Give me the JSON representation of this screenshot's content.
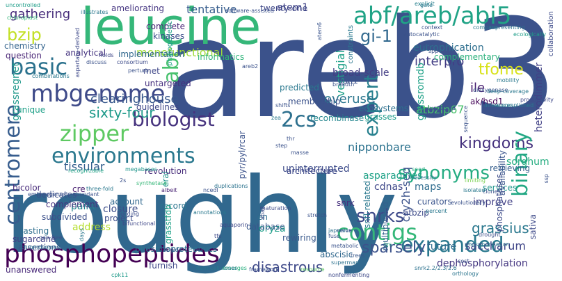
{
  "words": [
    {
      "text": "roughly",
      "color": "#31688e"
    },
    {
      "text": "areb3",
      "color": "#3b528b"
    },
    {
      "text": "leucine",
      "color": "#35b779"
    },
    {
      "text": "abf/areb/abi5",
      "color": "#20a386"
    },
    {
      "text": "phosphopeptides",
      "color": "#440154"
    },
    {
      "text": "mbgenome",
      "color": "#3e4a89"
    },
    {
      "text": "environments",
      "color": "#2a788e"
    },
    {
      "text": "biologist",
      "color": "#46337e"
    },
    {
      "text": "basic",
      "color": "#2c728e"
    },
    {
      "text": "zipper",
      "color": "#5ec962"
    },
    {
      "text": "contigs",
      "color": "#35b779"
    },
    {
      "text": "expanded",
      "color": "#2a788e"
    },
    {
      "text": "kingdoms",
      "color": "#46327e"
    },
    {
      "text": "centromere",
      "color": "#365c8d"
    },
    {
      "text": "binary",
      "color": "#22a884"
    },
    {
      "text": "abi",
      "color": "#48c16e"
    },
    {
      "text": "expert",
      "color": "#27808e"
    },
    {
      "text": "gi-1",
      "color": "#31688e"
    },
    {
      "text": "2cs",
      "color": "#2d708e"
    },
    {
      "text": "sixty-four",
      "color": "#1f9a8a"
    },
    {
      "text": "synonyms",
      "color": "#25ac82"
    },
    {
      "text": "snrks",
      "color": "#3e4a89"
    },
    {
      "text": "sparsely",
      "color": "#3b528b"
    },
    {
      "text": "bzip",
      "color": "#c2df23"
    },
    {
      "text": "tfome",
      "color": "#d8e219"
    },
    {
      "text": "clearinghouse",
      "color": "#38588c"
    },
    {
      "text": "interpro",
      "color": "#433e85"
    },
    {
      "text": "eutrophication",
      "color": "#2e6f8e"
    },
    {
      "text": "nipponbare",
      "color": "#2c728e"
    },
    {
      "text": "atbzip67",
      "color": "#4ac16d"
    },
    {
      "text": "gathering",
      "color": "#472d7b"
    },
    {
      "text": "tentative",
      "color": "#365d8d"
    },
    {
      "text": "atem1",
      "color": "#414487"
    },
    {
      "text": "grassromdb",
      "color": "#1fa187"
    },
    {
      "text": "cry2h-seq",
      "color": "#3b528b"
    },
    {
      "text": "saccharum",
      "color": "#404688"
    },
    {
      "text": "disastrous",
      "color": "#3e4989"
    },
    {
      "text": "grassius",
      "color": "#2a788e"
    },
    {
      "text": "heterodimmer",
      "color": "#424186"
    },
    {
      "text": "tissular",
      "color": "#355f8d"
    },
    {
      "text": "grassregnet",
      "color": "#1f988b"
    },
    {
      "text": "vestigial",
      "color": "#1fa188"
    },
    {
      "text": "overuse",
      "color": "#2a768e"
    },
    {
      "text": "paint",
      "color": "#26828e"
    },
    {
      "text": "monofunctional",
      "color": "#9fda3a"
    },
    {
      "text": "ile",
      "color": "#481f70"
    },
    {
      "text": "sorghum",
      "color": "#27ad81"
    },
    {
      "text": "complementary",
      "color": "#2db27d"
    },
    {
      "text": "dephosphorylation",
      "color": "#453781"
    },
    {
      "text": "furnish",
      "color": "#3f4788"
    },
    {
      "text": "unanswered",
      "color": "#482878"
    },
    {
      "text": "sugarcane",
      "color": "#424086"
    },
    {
      "text": "assertions",
      "color": "#3b528b"
    },
    {
      "text": "phosphoproteomics",
      "color": "#2c738e"
    },
    {
      "text": "unique",
      "color": "#1fa088"
    },
    {
      "text": "analytical",
      "color": "#463480"
    },
    {
      "text": "question",
      "color": "#482475"
    },
    {
      "text": "chemistry",
      "color": "#33638d"
    },
    {
      "text": "uninterrupted",
      "color": "#3e4c8a"
    },
    {
      "text": "ecosystems",
      "color": "#2d708e"
    },
    {
      "text": "membership",
      "color": "#3b528b"
    },
    {
      "text": "broad-scale",
      "color": "#433d84"
    },
    {
      "text": "asparagines",
      "color": "#1fa287"
    },
    {
      "text": "recombinase",
      "color": "#24868e"
    },
    {
      "text": "grasses",
      "color": "#1e9b8a"
    },
    {
      "text": "cdnas",
      "color": "#3f4889"
    },
    {
      "text": "maps",
      "color": "#2f6c8e"
    },
    {
      "text": "improve",
      "color": "#424186"
    },
    {
      "text": "rewiring",
      "color": "#38588c"
    },
    {
      "text": "future",
      "color": "#2f6b8e"
    },
    {
      "text": "abscisic",
      "color": "#31688e"
    },
    {
      "text": "oryza",
      "color": "#1f9e89"
    },
    {
      "text": "snrk",
      "color": "#46307e"
    },
    {
      "text": "database",
      "color": "#38598c"
    },
    {
      "text": "lasting",
      "color": "#2e6e8e"
    },
    {
      "text": "subdivided",
      "color": "#3c508b"
    },
    {
      "text": "complement",
      "color": "#46337f"
    },
    {
      "text": "account",
      "color": "#31688e"
    },
    {
      "text": "revolution",
      "color": "#472c7a"
    },
    {
      "text": "closure",
      "color": "#3d4e8a"
    },
    {
      "text": "project",
      "color": "#3d4d8a"
    },
    {
      "text": "record",
      "color": "#2b748e"
    },
    {
      "text": "architecture",
      "color": "#3e4989"
    },
    {
      "text": "services",
      "color": "#1f958b"
    },
    {
      "text": "availability",
      "color": "#3a548c"
    },
    {
      "text": "retrieving",
      "color": "#355e8d"
    },
    {
      "text": "predicted",
      "color": "#2a788e"
    },
    {
      "text": "untargeted",
      "color": "#46307e"
    },
    {
      "text": "guidelines",
      "color": "#3f4788"
    },
    {
      "text": "kinases",
      "color": "#3d4e8a"
    },
    {
      "text": "complete",
      "color": "#482576"
    },
    {
      "text": "twenty-one",
      "color": "#3f4788"
    },
    {
      "text": "ameliorating",
      "color": "#453581"
    },
    {
      "text": "informatics",
      "color": "#31b57b"
    },
    {
      "text": "asn1",
      "color": "#3b518b"
    },
    {
      "text": "atbzip",
      "color": "#3e4a89"
    },
    {
      "text": "curators",
      "color": "#3a548c"
    },
    {
      "text": "en",
      "color": "#2e6e8e"
    },
    {
      "text": "phosphatases",
      "color": "#3e4c8a"
    },
    {
      "text": "ak/hsd1",
      "color": "#450559"
    },
    {
      "text": "address",
      "color": "#b5de2b"
    },
    {
      "text": "bicolor",
      "color": "#472a7a"
    },
    {
      "text": "cre",
      "color": "#481f70"
    },
    {
      "text": "dedicates",
      "color": "#3b518b"
    },
    {
      "text": "snfl-related",
      "color": "#2a788e"
    },
    {
      "text": "multiplexed",
      "color": "#34618d"
    },
    {
      "text": "grasstfdb",
      "color": "#1fa187"
    },
    {
      "text": "pyr/pyl/rcar",
      "color": "#3b528b"
    },
    {
      "text": "eral",
      "color": "#21918c"
    },
    {
      "text": "met",
      "color": "#3f4788"
    },
    {
      "text": "implementation",
      "color": "#31688e"
    },
    {
      "text": "uncontrolled",
      "color": "#1f9e89"
    },
    {
      "text": "chloroplast",
      "color": "#34b679"
    },
    {
      "text": "superman",
      "color": "#2c718e"
    },
    {
      "text": "resource",
      "color": "#5ec962"
    },
    {
      "text": "trees",
      "color": "#38588c"
    },
    {
      "text": "emerges",
      "color": "#29af7f"
    },
    {
      "text": "hemicelluloses",
      "color": "#2a788e"
    },
    {
      "text": "framework",
      "color": "#3b528b"
    },
    {
      "text": "nonfermenting",
      "color": "#3e4989"
    },
    {
      "text": "orthology",
      "color": "#2b758e"
    },
    {
      "text": "snrk2.2/2.3/2.6",
      "color": "#2c728e"
    },
    {
      "text": "cpk11",
      "color": "#1f9a8a"
    },
    {
      "text": "sativa",
      "color": "#3e4a89"
    },
    {
      "text": "phylogenetic",
      "color": "#20a486"
    },
    {
      "text": "constraints",
      "color": "#2a788e"
    },
    {
      "text": "software-assisted",
      "color": "#3b528b"
    },
    {
      "text": "explicit",
      "color": "#27808e"
    },
    {
      "text": "collaboration",
      "color": "#3e4c8a"
    },
    {
      "text": "ecologically",
      "color": "#1f9e89"
    },
    {
      "text": "mobility",
      "color": "#2a788e"
    },
    {
      "text": "productivity",
      "color": "#3e4989"
    },
    {
      "text": "inferences",
      "color": "#2a788e"
    },
    {
      "text": "suspected",
      "color": "#39568c"
    },
    {
      "text": "metabolic",
      "color": "#3a538b"
    },
    {
      "text": "japonica",
      "color": "#2d718e"
    },
    {
      "text": "fuse",
      "color": "#3b528b"
    },
    {
      "text": "serve",
      "color": "#3b528b"
    },
    {
      "text": "drought",
      "color": "#3d4e8a"
    },
    {
      "text": "necessity",
      "color": "#2a788e"
    },
    {
      "text": "seed",
      "color": "#27ad81"
    },
    {
      "text": "maturation",
      "color": "#3e4c8a"
    },
    {
      "text": "duplications",
      "color": "#2c738e"
    },
    {
      "text": "megabases",
      "color": "#1f958b"
    },
    {
      "text": "synthetase",
      "color": "#39b87a"
    },
    {
      "text": "albeit",
      "color": "#482173"
    },
    {
      "text": "building",
      "color": "#3d4d8a"
    },
    {
      "text": "bifunctional",
      "color": "#3f4788"
    },
    {
      "text": "three-fold",
      "color": "#2a788e"
    },
    {
      "text": "embryogenesis-abundant",
      "color": "#3b528b"
    },
    {
      "text": "recognizable",
      "color": "#20a386"
    },
    {
      "text": "combinations",
      "color": "#2a788e"
    },
    {
      "text": "consortium",
      "color": "#3e4c8a"
    },
    {
      "text": "perturb",
      "color": "#3b528b"
    },
    {
      "text": "holds",
      "color": "#3f4788"
    },
    {
      "text": "discuss",
      "color": "#3b528b"
    },
    {
      "text": "illustrates",
      "color": "#2a788e"
    },
    {
      "text": "aspartate-derived",
      "color": "#3e4989"
    },
    {
      "text": "gate",
      "color": "#2a788e"
    },
    {
      "text": "context",
      "color": "#3b528b"
    },
    {
      "text": "representing",
      "color": "#2c718e"
    },
    {
      "text": "aba2",
      "color": "#3d4e8a"
    },
    {
      "text": "lys",
      "color": "#29af7f"
    },
    {
      "text": "stretch",
      "color": "#3b528b"
    },
    {
      "text": "atem6",
      "color": "#3a548c"
    },
    {
      "text": "aquaporin",
      "color": "#3e4989"
    },
    {
      "text": "annotations",
      "color": "#2a788e"
    },
    {
      "text": "gap-free",
      "color": "#3b528b"
    },
    {
      "text": "chromosomes",
      "color": "#2c728e"
    },
    {
      "text": "42-kda",
      "color": "#3b528b"
    },
    {
      "text": "tfs",
      "color": "#3e4a89"
    },
    {
      "text": "shifts",
      "color": "#3b528b"
    },
    {
      "text": "zea",
      "color": "#2a788e"
    },
    {
      "text": "thr",
      "color": "#3b528b"
    },
    {
      "text": "step",
      "color": "#3b528b"
    },
    {
      "text": "masse",
      "color": "#3b528b"
    },
    {
      "text": "breadth",
      "color": "#3b528b"
    },
    {
      "text": "accomplished",
      "color": "#2a788e"
    },
    {
      "text": "limiting",
      "color": "#7ad151"
    },
    {
      "text": "percent",
      "color": "#2a788e"
    },
    {
      "text": "isolated",
      "color": "#2a788e"
    },
    {
      "text": "clones",
      "color": "#3b528b"
    },
    {
      "text": "phosphorylation",
      "color": "#2a788e"
    },
    {
      "text": "cost",
      "color": "#3b528b"
    },
    {
      "text": "ssp",
      "color": "#3b528b"
    },
    {
      "text": "areb2",
      "color": "#3b528b"
    },
    {
      "text": "dioxygenase",
      "color": "#3b528b"
    },
    {
      "text": "deep-coverage",
      "color": "#2a788e"
    },
    {
      "text": "ssp",
      "color": "#3b528b"
    },
    {
      "text": "ncedl",
      "color": "#3b528b"
    },
    {
      "text": "compare",
      "color": "#2a788e"
    },
    {
      "text": "sequence",
      "color": "#3b528b"
    },
    {
      "text": "evolutionary",
      "color": "#3b528b"
    },
    {
      "text": "2s",
      "color": "#3b528b"
    },
    {
      "text": "autocatalytic",
      "color": "#3b528b"
    },
    {
      "text": "days",
      "color": "#2a788e"
    },
    {
      "text": "spp",
      "color": "#3b528b"
    }
  ]
}
